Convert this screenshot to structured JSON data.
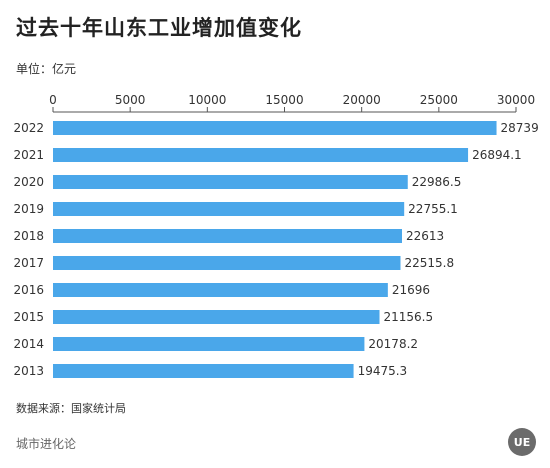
{
  "header": {
    "title": "过去十年山东工业增加值变化",
    "unit": "单位：亿元"
  },
  "footer": {
    "source": "数据来源：国家统计局",
    "brand": "城市进化论",
    "logo_text": "UE"
  },
  "colors": {
    "bar": "#4aa7ea",
    "axis": "#555555"
  },
  "chart_data": {
    "type": "bar",
    "orientation": "horizontal",
    "categories": [
      "2022",
      "2021",
      "2020",
      "2019",
      "2018",
      "2017",
      "2016",
      "2015",
      "2014",
      "2013"
    ],
    "values": [
      28739,
      26894.1,
      22986.5,
      22755.1,
      22613,
      22515.8,
      21696,
      21156.5,
      20178.2,
      19475.3
    ],
    "value_labels": [
      "28739",
      "26894.1",
      "22986.5",
      "22755.1",
      "22613",
      "22515.8",
      "21696",
      "21156.5",
      "20178.2",
      "19475.3"
    ],
    "x_ticks": [
      "0",
      "5000",
      "10000",
      "15000",
      "20000",
      "25000",
      "30000"
    ],
    "xlim": [
      0,
      30000
    ],
    "x_axis_position": "top",
    "grid": false,
    "legend": "none",
    "title": "过去十年山东工业增加值变化",
    "xlabel": "",
    "ylabel": ""
  }
}
